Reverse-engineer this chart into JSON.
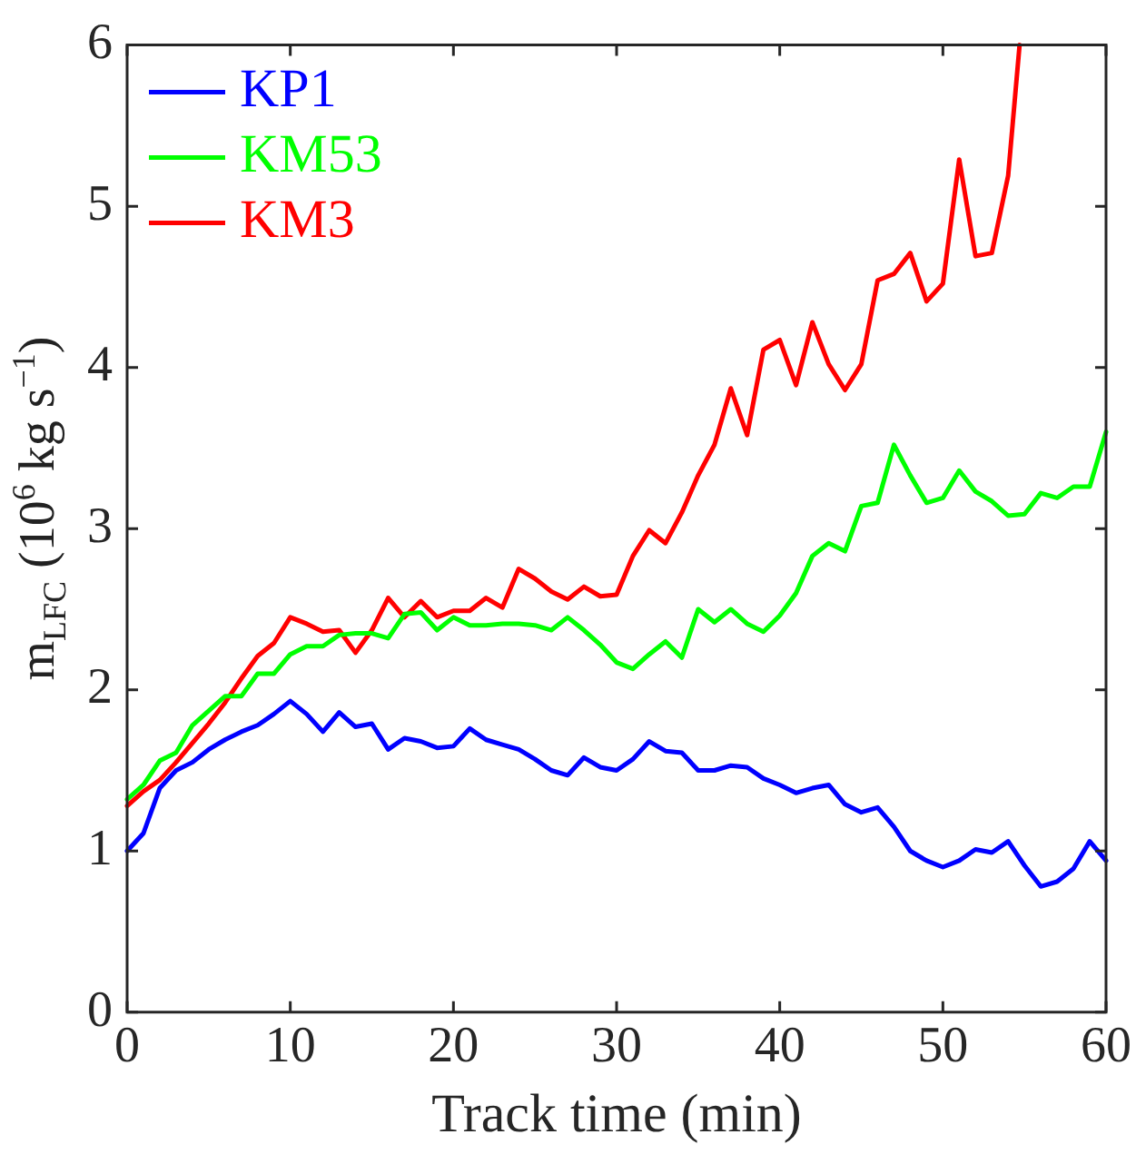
{
  "chart_data": {
    "type": "line",
    "xlabel": "Track time (min)",
    "ylabel": "m$_{LFC}$ (10$^{6}$ kg s$^{−1}$)",
    "x": [
      0,
      1,
      2,
      3,
      4,
      5,
      6,
      7,
      8,
      9,
      10,
      11,
      12,
      13,
      14,
      15,
      16,
      17,
      18,
      19,
      20,
      21,
      22,
      23,
      24,
      25,
      26,
      27,
      28,
      29,
      30,
      31,
      32,
      33,
      34,
      35,
      36,
      37,
      38,
      39,
      40,
      41,
      42,
      43,
      44,
      45,
      46,
      47,
      48,
      49,
      50,
      51,
      52,
      53,
      54,
      55,
      56,
      57,
      58,
      59,
      60
    ],
    "xlim": [
      0,
      60
    ],
    "xticks": [
      0,
      10,
      20,
      30,
      40,
      50,
      60
    ],
    "ylim": [
      0,
      6
    ],
    "yticks": [
      0,
      1,
      2,
      3,
      4,
      5,
      6
    ],
    "grid": false,
    "legend": "top left",
    "marker": "none",
    "line_style": "solid",
    "series": [
      {
        "name": "KP1",
        "color": "#0000ff",
        "values": [
          1.0,
          1.11,
          1.39,
          1.5,
          1.55,
          1.63,
          1.69,
          1.74,
          1.78,
          1.85,
          1.93,
          1.85,
          1.74,
          1.86,
          1.77,
          1.79,
          1.63,
          1.7,
          1.68,
          1.64,
          1.65,
          1.76,
          1.69,
          1.66,
          1.63,
          1.57,
          1.5,
          1.47,
          1.58,
          1.52,
          1.5,
          1.57,
          1.68,
          1.62,
          1.61,
          1.5,
          1.5,
          1.53,
          1.52,
          1.45,
          1.41,
          1.36,
          1.39,
          1.41,
          1.29,
          1.24,
          1.27,
          1.15,
          1.0,
          0.94,
          0.9,
          0.94,
          1.01,
          0.99,
          1.06,
          0.91,
          0.78,
          0.81,
          0.89,
          1.06,
          0.94
        ]
      },
      {
        "name": "KM53",
        "color": "#00ff00",
        "values": [
          1.32,
          1.41,
          1.56,
          1.61,
          1.78,
          1.87,
          1.96,
          1.96,
          2.1,
          2.1,
          2.22,
          2.27,
          2.27,
          2.34,
          2.35,
          2.35,
          2.32,
          2.47,
          2.48,
          2.37,
          2.45,
          2.4,
          2.4,
          2.41,
          2.41,
          2.4,
          2.37,
          2.45,
          2.37,
          2.28,
          2.17,
          2.13,
          2.22,
          2.3,
          2.2,
          2.5,
          2.42,
          2.5,
          2.41,
          2.36,
          2.46,
          2.6,
          2.83,
          2.91,
          2.86,
          3.14,
          3.16,
          3.52,
          3.33,
          3.16,
          3.19,
          3.36,
          3.23,
          3.17,
          3.08,
          3.09,
          3.22,
          3.19,
          3.26,
          3.26,
          3.6
        ]
      },
      {
        "name": "KM3",
        "color": "#ff0000",
        "x": [
          0,
          1,
          2,
          3,
          4,
          5,
          6,
          7,
          8,
          9,
          10,
          11,
          12,
          13,
          14,
          15,
          16,
          17,
          18,
          19,
          20,
          21,
          22,
          23,
          24,
          25,
          26,
          27,
          28,
          29,
          30,
          31,
          32,
          33,
          34,
          35,
          36,
          37,
          38,
          39,
          40,
          41,
          42,
          43,
          44,
          45,
          46,
          47,
          48,
          49,
          50,
          51,
          52,
          53,
          54,
          54.7
        ],
        "values": [
          1.28,
          1.37,
          1.44,
          1.55,
          1.67,
          1.79,
          1.92,
          2.07,
          2.21,
          2.29,
          2.45,
          2.41,
          2.36,
          2.37,
          2.23,
          2.37,
          2.57,
          2.45,
          2.55,
          2.45,
          2.49,
          2.49,
          2.57,
          2.51,
          2.75,
          2.69,
          2.61,
          2.56,
          2.64,
          2.58,
          2.59,
          2.83,
          2.99,
          2.91,
          3.1,
          3.33,
          3.52,
          3.87,
          3.58,
          4.11,
          4.17,
          3.89,
          4.28,
          4.02,
          3.86,
          4.02,
          4.54,
          4.58,
          4.71,
          4.41,
          4.52,
          5.29,
          4.69,
          4.71,
          5.19,
          6.0
        ]
      }
    ]
  }
}
